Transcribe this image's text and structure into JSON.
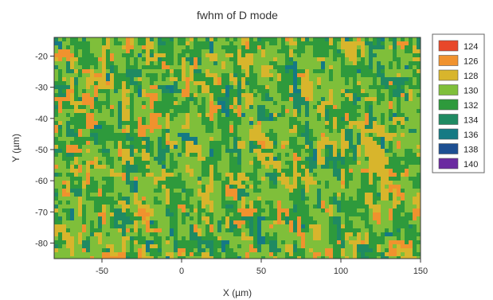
{
  "chart_data": {
    "type": "heatmap",
    "title": "fwhm of D mode",
    "xlabel": "X (µm)",
    "ylabel": "Y (µm)",
    "xlim": [
      -80,
      150
    ],
    "ylim": [
      -85,
      -14
    ],
    "x_ticks": [
      -50,
      0,
      50,
      100,
      150
    ],
    "y_ticks": [
      -20,
      -30,
      -40,
      -50,
      -60,
      -70,
      -80
    ],
    "legend": {
      "placement": "right",
      "entries": [
        {
          "label": "124",
          "value": 124,
          "color": "#e8482a"
        },
        {
          "label": "126",
          "value": 126,
          "color": "#f0922e"
        },
        {
          "label": "128",
          "value": 128,
          "color": "#d8b52c"
        },
        {
          "label": "130",
          "value": 130,
          "color": "#7fbf3a"
        },
        {
          "label": "132",
          "value": 132,
          "color": "#2e9a3c"
        },
        {
          "label": "134",
          "value": 134,
          "color": "#1f8a62"
        },
        {
          "label": "136",
          "value": 136,
          "color": "#157a84"
        },
        {
          "label": "138",
          "value": 138,
          "color": "#1d4f92"
        },
        {
          "label": "140",
          "value": 140,
          "color": "#6a2aa0"
        }
      ]
    },
    "value_distribution_weights": {
      "126": 0.06,
      "128": 0.14,
      "130": 0.36,
      "132": 0.34,
      "134": 0.08,
      "136": 0.02
    }
  }
}
